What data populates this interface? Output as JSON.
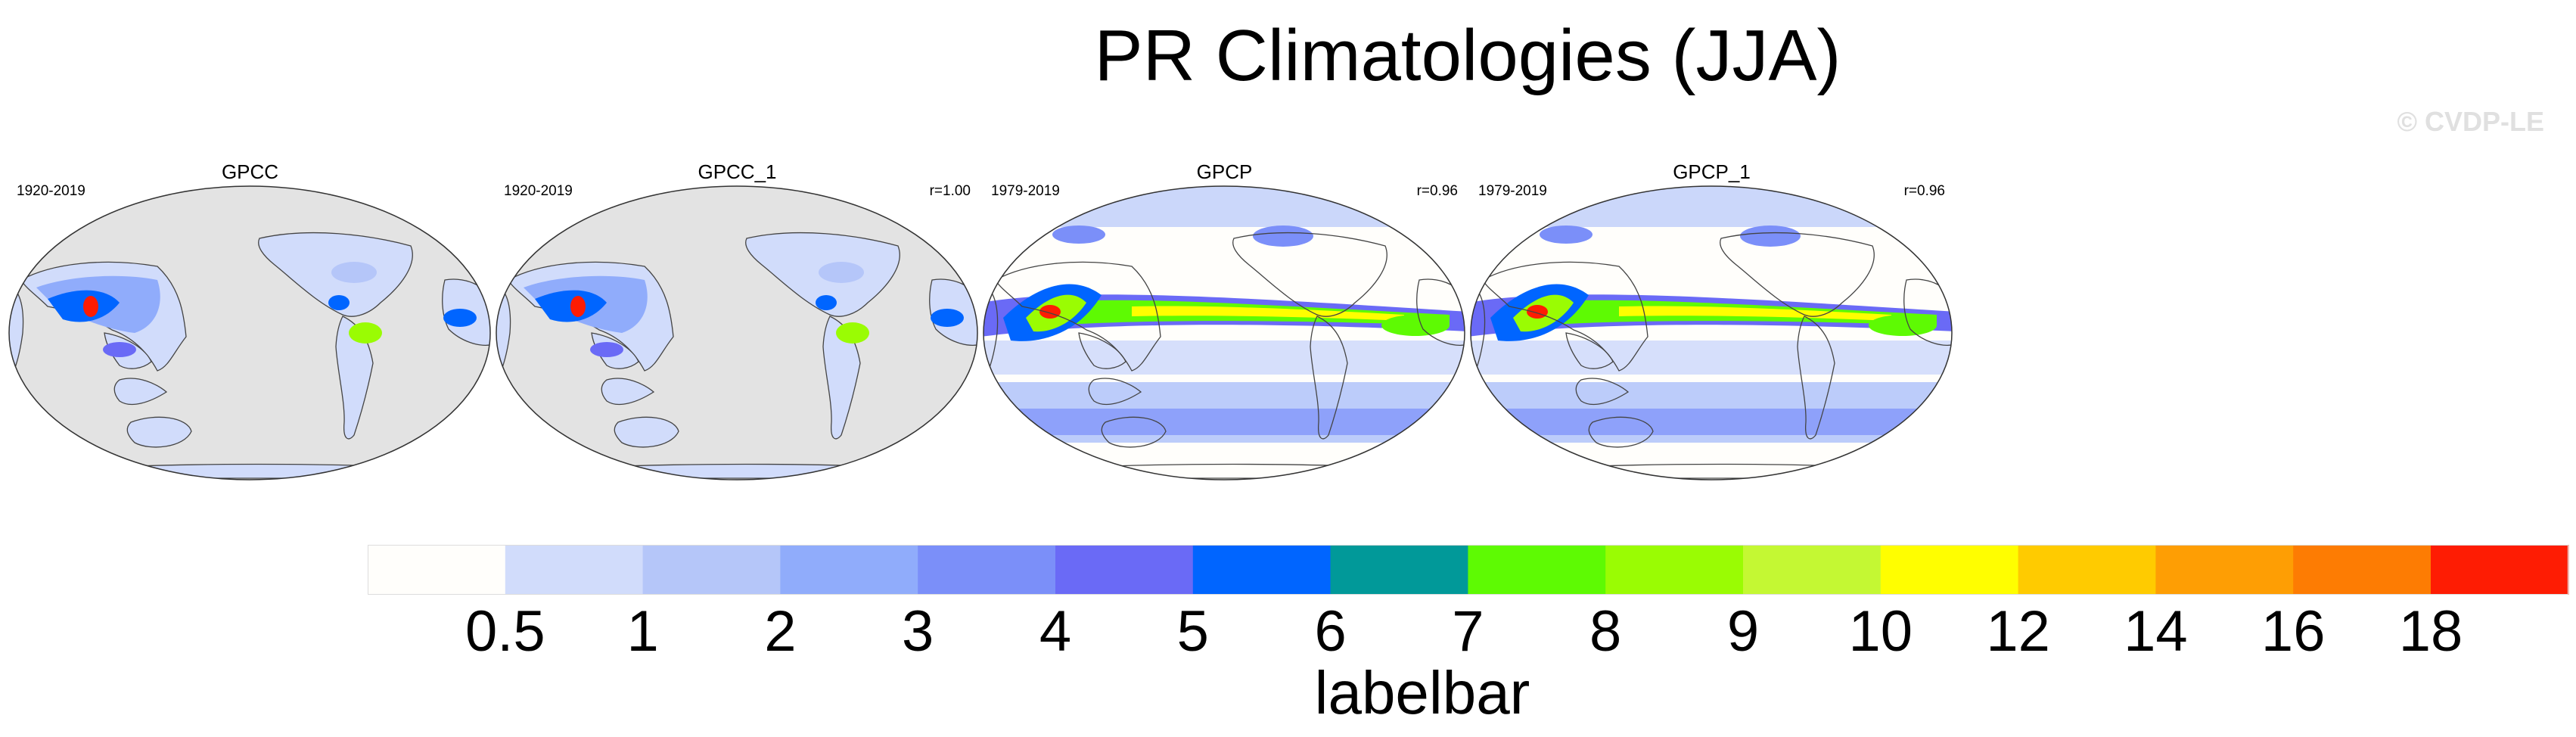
{
  "title": "PR Climatologies (JJA)",
  "watermark": "© CVDP-LE",
  "panels": [
    {
      "title": "GPCC",
      "left_label": "1920-2019",
      "right_label": "",
      "coverage": "land"
    },
    {
      "title": "GPCC_1",
      "left_label": "1920-2019",
      "right_label": "r=1.00",
      "coverage": "land"
    },
    {
      "title": "GPCP",
      "left_label": "1979-2019",
      "right_label": "r=0.96",
      "coverage": "global"
    },
    {
      "title": "GPCP_1",
      "left_label": "1979-2019",
      "right_label": "r=0.96",
      "coverage": "global"
    }
  ],
  "labelbar": {
    "title": "labelbar",
    "levels": [
      "0.5",
      "1",
      "2",
      "3",
      "4",
      "5",
      "6",
      "7",
      "8",
      "9",
      "10",
      "12",
      "14",
      "16",
      "18"
    ],
    "colors": [
      "#fffefb",
      "#d1dcfb",
      "#b5c6f9",
      "#90acfb",
      "#7b8ff9",
      "#6a6af6",
      "#0065ff",
      "#019999",
      "#5efa03",
      "#9afc03",
      "#c4f833",
      "#fffe00",
      "#ffcb00",
      "#fe9e04",
      "#fd7c03",
      "#fe1c03"
    ]
  },
  "map_colors": {
    "missing": "#e3e3e3",
    "coast": "#444444"
  }
}
